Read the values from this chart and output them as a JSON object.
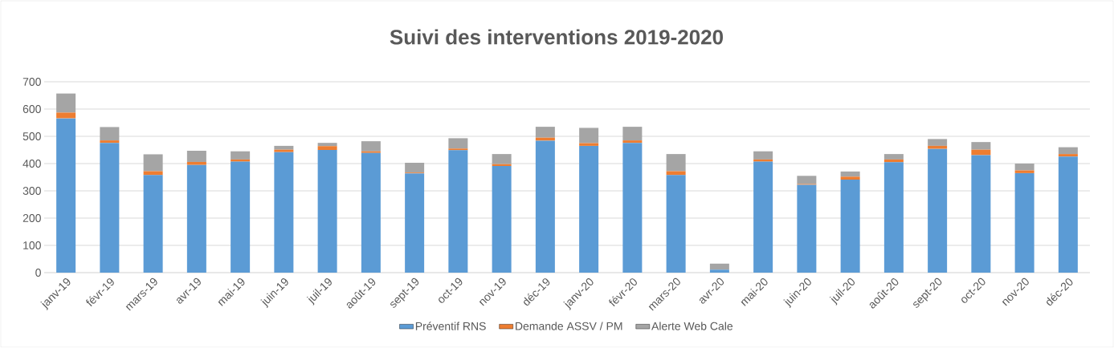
{
  "chart_data": {
    "type": "bar",
    "stacked": true,
    "title": "Suivi des interventions 2019-2020",
    "categories": [
      "janv-19",
      "févr-19",
      "mars-19",
      "avr-19",
      "mai-19",
      "juin-19",
      "juil-19",
      "août-19",
      "sept-19",
      "oct-19",
      "nov-19",
      "déc-19",
      "janv-20",
      "févr-20",
      "mars-20",
      "avr-20",
      "mai-20",
      "juin-20",
      "juil-20",
      "août-20",
      "sept-20",
      "oct-20",
      "nov-20",
      "déc-20"
    ],
    "series": [
      {
        "name": "Préventif RNS",
        "color": "#5b9bd5",
        "values": [
          566,
          476,
          358,
          395,
          407,
          442,
          450,
          439,
          364,
          449,
          391,
          484,
          465,
          476,
          358,
          11,
          407,
          322,
          341,
          405,
          454,
          431,
          365,
          426
        ]
      },
      {
        "name": "Demande ASSV / PM",
        "color": "#ed7d31",
        "values": [
          21,
          9,
          14,
          11,
          8,
          9,
          14,
          6,
          3,
          6,
          7,
          11,
          10,
          9,
          14,
          0,
          8,
          3,
          11,
          10,
          11,
          20,
          10,
          9
        ]
      },
      {
        "name": "Alerte Web Cale",
        "color": "#a5a5a5",
        "values": [
          70,
          49,
          62,
          41,
          30,
          14,
          12,
          37,
          36,
          38,
          37,
          40,
          56,
          50,
          63,
          22,
          30,
          30,
          19,
          20,
          25,
          28,
          25,
          25
        ]
      }
    ],
    "ylim": [
      0,
      700
    ],
    "yticks": [
      0,
      100,
      200,
      300,
      400,
      500,
      600,
      700
    ],
    "grid": "y",
    "legend": "bottom"
  }
}
